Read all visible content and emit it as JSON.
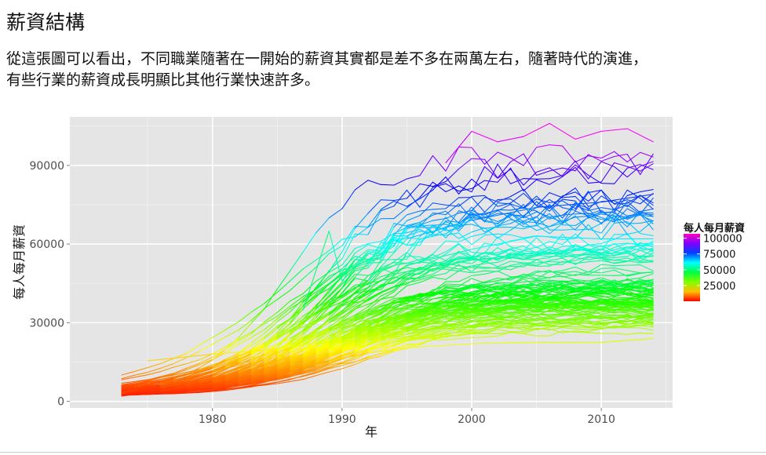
{
  "title": "薪資結構",
  "description": [
    "從這張圖可以看出，不同職業隨著在一開始的薪資其實都是差不多在兩萬左右，隨著時代的演進，",
    "有些行業的薪資成長明顯比其他行業快速許多。"
  ],
  "chart_data": {
    "type": "line",
    "xlabel": "年",
    "ylabel": "每人每月薪資",
    "xlim": [
      1969,
      2015.5
    ],
    "ylim": [
      -2500,
      108500
    ],
    "x_ticks": [
      1980,
      1990,
      2000,
      2010
    ],
    "y_ticks": [
      0,
      30000,
      60000,
      90000
    ],
    "x_tick_labels": [
      "1980",
      "1990",
      "2000",
      "2010"
    ],
    "y_tick_labels": [
      "0",
      "30000",
      "60000",
      "90000"
    ],
    "grid": true,
    "background": "#e5e5e5",
    "legend": {
      "title": "每人每月薪資",
      "position": "right",
      "labels": [
        "100000",
        "75000",
        "50000",
        "25000"
      ],
      "breaks": [
        100000,
        75000,
        50000,
        25000
      ],
      "color_range": [
        0,
        107000
      ],
      "colors": [
        "#ff0000",
        "#ffbf00",
        "#80ff00",
        "#00ff40",
        "#00ffff",
        "#0040ff",
        "#8000ff",
        "#ff00bf"
      ]
    },
    "series_count": 120,
    "x_range": [
      1973,
      2014
    ],
    "series": [
      {
        "x": [
          1973,
          1976,
          1980,
          1983,
          1986,
          1989,
          1992,
          1995,
          2000,
          2005,
          2010,
          2014
        ],
        "values": [
          2800,
          5200,
          9500,
          14500,
          20500,
          27500,
          29500,
          33500,
          36500,
          38500,
          37500,
          37000
        ]
      },
      {
        "x": [
          1973,
          1976,
          1980,
          1983,
          1986,
          1989,
          1992,
          1995,
          2000,
          2005,
          2010,
          2014
        ],
        "values": [
          3200,
          6500,
          12500,
          18000,
          24000,
          33000,
          46000,
          62000,
          69000,
          74000,
          76000,
          79000
        ]
      },
      {
        "x": [
          1973,
          1976,
          1980,
          1983,
          1986,
          1989,
          1992,
          1995,
          2000,
          2005,
          2010,
          2014
        ],
        "values": [
          3000,
          6000,
          11000,
          16000,
          20000,
          30000,
          40000,
          52000,
          58000,
          63000,
          62000,
          62000
        ]
      },
      {
        "x": [
          1973,
          1976,
          1980,
          1983,
          1986,
          1989,
          1992,
          1995,
          2000,
          2005,
          2010,
          2014
        ],
        "values": [
          2000,
          4000,
          7500,
          10000,
          12500,
          15500,
          18500,
          20500,
          22000,
          22500,
          22500,
          24000
        ]
      },
      {
        "x": [
          1998,
          2000,
          2002,
          2004,
          2006,
          2008,
          2010,
          2012,
          2014
        ],
        "values": [
          91000,
          103000,
          99000,
          101000,
          106000,
          100000,
          103000,
          104000,
          99000
        ]
      },
      {
        "x": [
          1985,
          1987,
          1989,
          1990,
          1992,
          1995
        ],
        "values": [
          28000,
          35000,
          65000,
          46000,
          56000,
          65000
        ]
      },
      {
        "x": [
          1975,
          1980,
          1985,
          1990,
          1995,
          2000,
          2005,
          2010,
          2014
        ],
        "values": [
          15500,
          18000,
          20000,
          24000,
          27000,
          28500,
          29000,
          28000,
          29500
        ]
      }
    ]
  }
}
